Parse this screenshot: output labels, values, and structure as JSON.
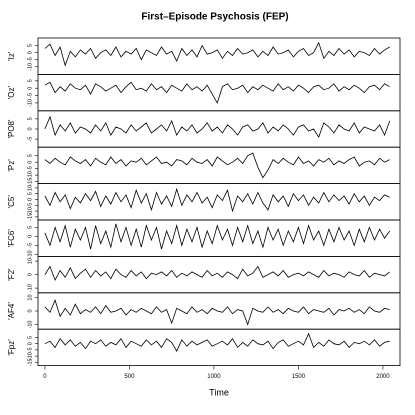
{
  "chart_data": {
    "type": "line",
    "title": "First–Episode Psychosis (FEP)",
    "xlabel": "Time",
    "xlim": [
      -41,
      2101
    ],
    "xticks": [
      0,
      500,
      1000,
      1500,
      2000
    ],
    "x": [
      0,
      30,
      60,
      90,
      120,
      150,
      180,
      210,
      240,
      270,
      300,
      330,
      360,
      390,
      420,
      450,
      480,
      510,
      540,
      570,
      600,
      630,
      660,
      690,
      720,
      750,
      780,
      810,
      840,
      870,
      900,
      930,
      960,
      990,
      1020,
      1050,
      1080,
      1110,
      1140,
      1170,
      1200,
      1230,
      1260,
      1290,
      1320,
      1350,
      1380,
      1410,
      1440,
      1470,
      1500,
      1530,
      1560,
      1590,
      1620,
      1650,
      1680,
      1710,
      1740,
      1770,
      1800,
      1830,
      1860,
      1890,
      1920,
      1950,
      1980,
      2010,
      2040
    ],
    "series": [
      {
        "name": "'Iz'",
        "color": "#000000",
        "ylim": [
          -14,
          9
        ],
        "yticks": [
          -10,
          -5,
          0,
          5
        ],
        "values": [
          3,
          6,
          -2,
          4,
          -9,
          1,
          -3,
          2,
          -1,
          3,
          -4,
          0,
          2,
          -2,
          4,
          -3,
          1,
          -1,
          3,
          -5,
          2,
          0,
          -2,
          4,
          -1,
          1,
          -6,
          3,
          -2,
          2,
          -3,
          5,
          -1,
          0,
          2,
          -4,
          1,
          -2,
          3,
          -1,
          0,
          2,
          -3,
          1,
          -2,
          4,
          -1,
          0,
          2,
          -3,
          1,
          3,
          -2,
          0,
          7,
          -4,
          1,
          -2,
          3,
          -1,
          2,
          -3,
          1,
          0,
          -2,
          3,
          -1,
          2,
          4
        ]
      },
      {
        "name": "'Oz'",
        "color": "#000000",
        "ylim": [
          -14,
          8
        ],
        "yticks": [
          -10,
          -5,
          0,
          5
        ],
        "values": [
          2,
          4,
          -3,
          1,
          -2,
          3,
          0,
          -1,
          2,
          -4,
          3,
          1,
          -2,
          0,
          2,
          -3,
          1,
          4,
          -1,
          0,
          -2,
          3,
          -1,
          1,
          -3,
          2,
          0,
          -2,
          3,
          -1,
          1,
          -2,
          2,
          -4,
          -10,
          1,
          3,
          -1,
          0,
          2,
          -3,
          1,
          -1,
          2,
          0,
          -2,
          3,
          -1,
          1,
          -2,
          2,
          0,
          -3,
          1,
          2,
          -1,
          0,
          3,
          -2,
          1,
          -1,
          2,
          0,
          -3,
          1,
          2,
          -1,
          3,
          1
        ]
      },
      {
        "name": "'PO8'",
        "color": "#000000",
        "ylim": [
          -8,
          8
        ],
        "yticks": [
          -5,
          0,
          5
        ],
        "values": [
          0,
          6,
          -3,
          2,
          -1,
          3,
          -2,
          1,
          0,
          -2,
          2,
          -1,
          3,
          -3,
          1,
          0,
          -2,
          2,
          -1,
          1,
          3,
          -2,
          0,
          2,
          -1,
          4,
          -3,
          1,
          -1,
          2,
          -2,
          0,
          3,
          -1,
          1,
          -2,
          2,
          0,
          -3,
          1,
          2,
          -1,
          0,
          3,
          -2,
          1,
          -1,
          2,
          0,
          -3,
          1,
          2,
          -1,
          0,
          -4,
          3,
          1,
          -2,
          2,
          0,
          -1,
          3,
          -2,
          1,
          0,
          -1,
          2,
          -3,
          4
        ]
      },
      {
        "name": "'Pz'",
        "color": "#000000",
        "ylim": [
          -15,
          10
        ],
        "yticks": [
          -15,
          -10,
          -5,
          0,
          5
        ],
        "values": [
          2,
          -1,
          3,
          0,
          -2,
          4,
          1,
          -1,
          2,
          -3,
          3,
          0,
          -2,
          4,
          -1,
          2,
          -3,
          1,
          0,
          3,
          -2,
          1,
          4,
          -1,
          0,
          -3,
          2,
          1,
          -2,
          3,
          0,
          -1,
          2,
          -3,
          4,
          1,
          -2,
          0,
          3,
          -1,
          5,
          7,
          -4,
          -12,
          -6,
          2,
          -1,
          3,
          0,
          -2,
          4,
          -1,
          1,
          -3,
          2,
          0,
          3,
          -2,
          1,
          -1,
          2,
          4,
          -3,
          0,
          1,
          -2,
          3,
          0,
          2
        ]
      },
      {
        "name": "'C5'",
        "color": "#000000",
        "ylim": [
          -16,
          12
        ],
        "yticks": [
          -15,
          -10,
          -5,
          0,
          5,
          10
        ],
        "values": [
          3,
          -5,
          6,
          -2,
          4,
          -8,
          2,
          -3,
          5,
          -1,
          7,
          -6,
          3,
          -4,
          6,
          -2,
          4,
          -7,
          8,
          -3,
          5,
          -9,
          6,
          -4,
          3,
          -6,
          9,
          -5,
          4,
          -2,
          6,
          -3,
          2,
          -7,
          4,
          -1,
          8,
          -10,
          3,
          -2,
          5,
          -4,
          6,
          -3,
          -9,
          4,
          -2,
          3,
          -6,
          5,
          -1,
          4,
          -5,
          2,
          -3,
          6,
          -2,
          4,
          -1,
          3,
          -4,
          5,
          -2,
          3,
          -5,
          2,
          -1,
          4,
          2
        ]
      },
      {
        "name": "'FC6'",
        "color": "#000000",
        "ylim": [
          -10,
          8
        ],
        "yticks": [
          -10,
          -5,
          0,
          5
        ],
        "values": [
          2,
          -5,
          5,
          -3,
          6,
          -6,
          4,
          -2,
          5,
          -7,
          6,
          -4,
          3,
          -6,
          7,
          -3,
          5,
          -5,
          4,
          -6,
          6,
          -2,
          5,
          -7,
          3,
          -4,
          6,
          -5,
          4,
          -3,
          5,
          -6,
          3,
          -4,
          6,
          -2,
          4,
          -5,
          5,
          -3,
          6,
          -4,
          3,
          -6,
          5,
          -2,
          4,
          -5,
          3,
          -3,
          5,
          -4,
          6,
          -2,
          3,
          -5,
          4,
          -3,
          5,
          -2,
          3,
          -5,
          4,
          -3,
          5,
          -2,
          4,
          -1,
          3
        ]
      },
      {
        "name": "'F2'",
        "color": "#000000",
        "ylim": [
          -12,
          12
        ],
        "yticks": [
          -10,
          0,
          10
        ],
        "values": [
          0,
          6,
          -4,
          3,
          -2,
          5,
          -3,
          1,
          4,
          -2,
          3,
          -1,
          2,
          -3,
          4,
          0,
          -2,
          3,
          -1,
          2,
          -3,
          1,
          0,
          2,
          -1,
          3,
          -2,
          1,
          -1,
          2,
          0,
          -2,
          3,
          -1,
          1,
          -2,
          2,
          0,
          -3,
          4,
          -1,
          1,
          6,
          -2,
          0,
          2,
          -1,
          3,
          -2,
          0,
          1,
          -1,
          2,
          0,
          -2,
          3,
          -1,
          1,
          0,
          -2,
          2,
          0,
          -1,
          3,
          -2,
          1,
          0,
          -1,
          2
        ]
      },
      {
        "name": "'AF4'",
        "color": "#000000",
        "ylim": [
          -12,
          12
        ],
        "yticks": [
          -10,
          0,
          10
        ],
        "values": [
          3,
          -1,
          8,
          -4,
          2,
          -3,
          5,
          -2,
          1,
          -1,
          3,
          -2,
          4,
          -1,
          0,
          2,
          -3,
          1,
          -1,
          2,
          0,
          -2,
          3,
          -1,
          1,
          -9,
          2,
          0,
          -2,
          3,
          -1,
          1,
          -2,
          2,
          0,
          -1,
          3,
          -2,
          1,
          0,
          -10,
          2,
          0,
          -1,
          3,
          -1,
          1,
          -2,
          2,
          0,
          -1,
          3,
          -2,
          1,
          0,
          -1,
          2,
          -3,
          1,
          0,
          2,
          -1,
          1,
          -2,
          3,
          0,
          -1,
          2,
          1
        ]
      },
      {
        "name": "'Fpz'",
        "color": "#000000",
        "ylim": [
          -16,
          10
        ],
        "yticks": [
          -15,
          -10,
          -5,
          0,
          5
        ],
        "values": [
          0,
          2,
          -3,
          4,
          -1,
          3,
          -2,
          1,
          -4,
          2,
          0,
          3,
          -2,
          1,
          -1,
          4,
          -3,
          2,
          0,
          -2,
          3,
          -1,
          2,
          -3,
          4,
          1,
          -6,
          3,
          -2,
          2,
          -1,
          1,
          3,
          -2,
          0,
          2,
          -1,
          4,
          -3,
          1,
          -2,
          3,
          0,
          -1,
          2,
          -4,
          1,
          3,
          -2,
          0,
          2,
          -1,
          8,
          -3,
          1,
          -2,
          3,
          0,
          -1,
          2,
          -3,
          1,
          0,
          2,
          -1,
          3,
          -2,
          1,
          2
        ]
      }
    ]
  }
}
